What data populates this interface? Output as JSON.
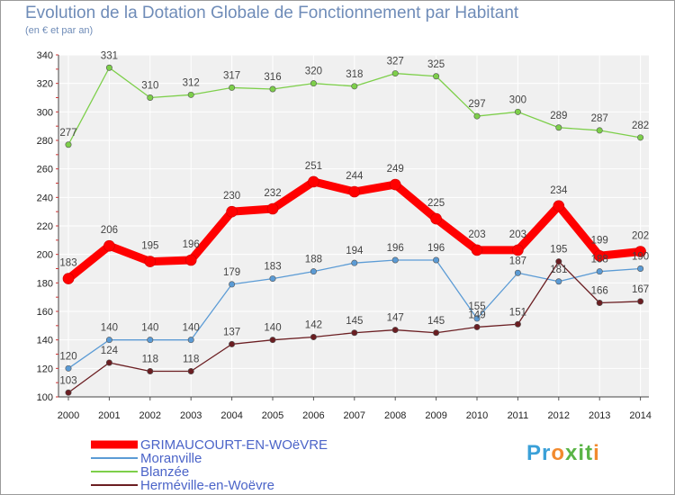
{
  "chart_data": {
    "type": "line",
    "title": "Evolution de la Dotation Globale de Fonctionnement par Habitant",
    "subtitle": "(en € et par an)",
    "xlabel": "",
    "ylabel": "",
    "x": [
      "2000",
      "2001",
      "2002",
      "2003",
      "2004",
      "2005",
      "2006",
      "2007",
      "2008",
      "2009",
      "2010",
      "2011",
      "2012",
      "2013",
      "2014"
    ],
    "ylim": [
      100,
      340
    ],
    "yticks": [
      100,
      120,
      140,
      160,
      180,
      200,
      220,
      240,
      260,
      280,
      300,
      320,
      340
    ],
    "grid": true,
    "legend_position": "bottom-left",
    "series": [
      {
        "name": "GRIMAUCOURT-EN-WOëVRE",
        "color": "#ff0000",
        "values": [
          183,
          206,
          195,
          196,
          230,
          232,
          251,
          244,
          249,
          225,
          203,
          203,
          234,
          199,
          202
        ]
      },
      {
        "name": "Moranville",
        "color": "#5b9bd5",
        "values": [
          120,
          140,
          140,
          140,
          179,
          183,
          188,
          194,
          196,
          196,
          155,
          187,
          181,
          188,
          190
        ]
      },
      {
        "name": "Blanzée",
        "color": "#7dcf4a",
        "values": [
          277,
          331,
          310,
          312,
          317,
          316,
          320,
          318,
          327,
          325,
          297,
          300,
          289,
          287,
          282
        ]
      },
      {
        "name": "Herméville-en-Woëvre",
        "color": "#6b1e22",
        "values": [
          103,
          124,
          118,
          118,
          137,
          140,
          142,
          145,
          147,
          145,
          149,
          151,
          195,
          166,
          167
        ]
      }
    ]
  },
  "logo": {
    "text": "Proxiti",
    "colors": [
      "#3aa0d8",
      "#f28a2e",
      "#5ab446"
    ]
  }
}
